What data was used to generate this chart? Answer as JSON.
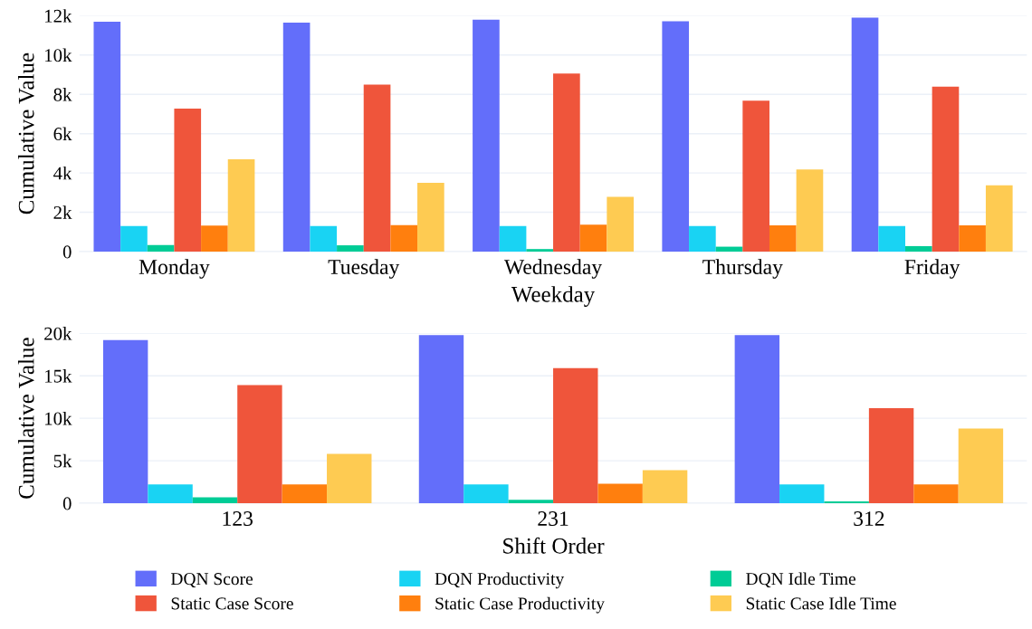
{
  "chart_data": [
    {
      "type": "bar",
      "xlabel": "Weekday",
      "ylabel": "Cumulative Value",
      "categories": [
        "Monday",
        "Tuesday",
        "Wednesday",
        "Thursday",
        "Friday"
      ],
      "ylim": [
        0,
        12000
      ],
      "yticks": [
        {
          "value": 0,
          "label": "0"
        },
        {
          "value": 2000,
          "label": "2k"
        },
        {
          "value": 4000,
          "label": "4k"
        },
        {
          "value": 6000,
          "label": "6k"
        },
        {
          "value": 8000,
          "label": "8k"
        },
        {
          "value": 10000,
          "label": "10k"
        },
        {
          "value": 12000,
          "label": "12k"
        }
      ],
      "grid": "y",
      "series": [
        {
          "color": "#636efa",
          "values": [
            11700,
            11650,
            11800,
            11720,
            11900
          ]
        },
        {
          "color": "#19d3f3",
          "values": [
            1300,
            1300,
            1300,
            1300,
            1300
          ]
        },
        {
          "color": "#00cc96",
          "values": [
            330,
            320,
            130,
            250,
            280
          ]
        },
        {
          "color": "#ef553b",
          "values": [
            7280,
            8500,
            9060,
            7680,
            8390
          ]
        },
        {
          "color": "#ff7f0e",
          "values": [
            1320,
            1350,
            1370,
            1330,
            1330
          ]
        },
        {
          "color": "#fecb52",
          "values": [
            4700,
            3500,
            2790,
            4180,
            3370
          ]
        }
      ]
    },
    {
      "type": "bar",
      "xlabel": "Shift Order",
      "ylabel": "Cumulative Value",
      "categories": [
        "123",
        "231",
        "312"
      ],
      "ylim": [
        0,
        20000
      ],
      "yticks": [
        {
          "value": 0,
          "label": "0"
        },
        {
          "value": 5000,
          "label": "5k"
        },
        {
          "value": 10000,
          "label": "10k"
        },
        {
          "value": 15000,
          "label": "15k"
        },
        {
          "value": 20000,
          "label": "20k"
        }
      ],
      "grid": "y",
      "legend": "bottom",
      "series": [
        {
          "name": "DQN Score",
          "color": "#636efa",
          "values": [
            19200,
            19800,
            19800
          ]
        },
        {
          "name": "DQN Productivity",
          "color": "#19d3f3",
          "values": [
            2200,
            2200,
            2200
          ]
        },
        {
          "name": "DQN Idle Time",
          "color": "#00cc96",
          "values": [
            700,
            400,
            200
          ]
        },
        {
          "name": "Static Case Score",
          "color": "#ef553b",
          "values": [
            13900,
            15900,
            11200
          ]
        },
        {
          "name": "Static Case Productivity",
          "color": "#ff7f0e",
          "values": [
            2200,
            2300,
            2200
          ]
        },
        {
          "name": "Static Case Idle Time",
          "color": "#fecb52",
          "values": [
            5800,
            3900,
            8800
          ]
        }
      ]
    }
  ]
}
